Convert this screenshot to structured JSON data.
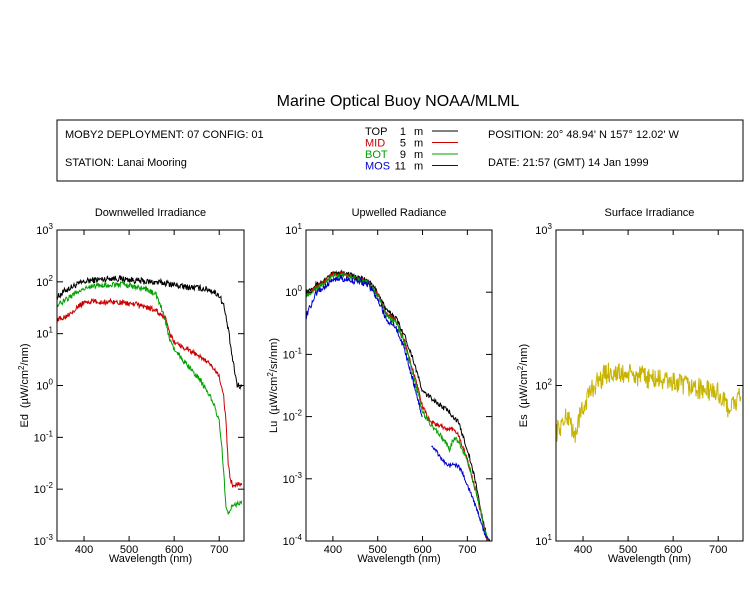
{
  "title": "Marine Optical Buoy NOAA/MLML",
  "info": {
    "deployment": "MOBY2 DEPLOYMENT: 07 CONFIG: 01",
    "station": "STATION: Lanai Mooring",
    "position": "POSITION: 20° 48.94' N   157° 12.02' W",
    "date": "DATE: 21:57 (GMT) 14 Jan 1999"
  },
  "legend": [
    {
      "name": "TOP",
      "depth": "1",
      "unit": "m",
      "color": "#000000"
    },
    {
      "name": "MID",
      "depth": "5",
      "unit": "m",
      "color": "#cc0000"
    },
    {
      "name": "BOT",
      "depth": "9",
      "unit": "m",
      "color": "#00a000"
    },
    {
      "name": "MOS",
      "depth": "11",
      "unit": "m",
      "color": "#0000cc"
    }
  ],
  "chart_data": [
    {
      "type": "line",
      "title": "Downwelled Irradiance",
      "xlabel": "Wavelength (nm)",
      "ylabel_main": "Ed",
      "ylabel_unit_a": "(µW/cm",
      "ylabel_unit_sup": "2",
      "ylabel_unit_b": "/nm)",
      "xlim": [
        340,
        755
      ],
      "ylim": [
        0.001,
        1000
      ],
      "yscale": "log",
      "xticks": [
        400,
        500,
        600,
        700
      ],
      "yticks": [
        {
          "value": 1000,
          "base": "10",
          "exp": "3"
        },
        {
          "value": 100,
          "base": "10",
          "exp": "2"
        },
        {
          "value": 10,
          "base": "10",
          "exp": "1"
        },
        {
          "value": 1,
          "base": "10",
          "exp": "0"
        },
        {
          "value": 0.1,
          "base": "10",
          "exp": "-1"
        },
        {
          "value": 0.01,
          "base": "10",
          "exp": "-2"
        },
        {
          "value": 0.001,
          "base": "10",
          "exp": "-3"
        }
      ],
      "series": [
        {
          "name": "TOP",
          "color": "#000000",
          "noise": 0.06,
          "x": [
            340,
            360,
            380,
            400,
            420,
            440,
            460,
            480,
            500,
            520,
            540,
            560,
            580,
            600,
            620,
            640,
            660,
            680,
            700,
            710,
            720,
            730,
            740,
            750
          ],
          "y": [
            50,
            70,
            85,
            100,
            108,
            112,
            118,
            115,
            110,
            105,
            100,
            98,
            95,
            88,
            80,
            78,
            75,
            70,
            55,
            35,
            12,
            3,
            1.0,
            0.95
          ]
        },
        {
          "name": "MID",
          "color": "#cc0000",
          "noise": 0.05,
          "x": [
            340,
            360,
            380,
            400,
            420,
            440,
            460,
            480,
            500,
            520,
            540,
            560,
            580,
            590,
            600,
            620,
            640,
            660,
            680,
            700,
            710,
            715,
            720,
            725,
            730,
            740,
            750
          ],
          "y": [
            18,
            22,
            30,
            40,
            42,
            40,
            42,
            40,
            38,
            36,
            32,
            28,
            20,
            10,
            7,
            5.5,
            4.5,
            3.5,
            2.5,
            1.5,
            0.6,
            0.2,
            0.03,
            0.015,
            0.012,
            0.013,
            0.012
          ]
        },
        {
          "name": "BOT",
          "color": "#00a000",
          "noise": 0.05,
          "x": [
            340,
            360,
            380,
            400,
            420,
            440,
            460,
            480,
            500,
            520,
            540,
            560,
            570,
            580,
            590,
            600,
            620,
            640,
            660,
            680,
            690,
            700,
            705,
            710,
            715,
            720,
            730,
            740,
            750
          ],
          "y": [
            35,
            45,
            60,
            75,
            82,
            85,
            88,
            90,
            85,
            78,
            72,
            55,
            35,
            18,
            8,
            5,
            3,
            2,
            1.2,
            0.6,
            0.4,
            0.2,
            0.08,
            0.02,
            0.005,
            0.003,
            0.005,
            0.005,
            0.006
          ]
        }
      ]
    },
    {
      "type": "line",
      "title": "Upwelled Radiance",
      "xlabel": "Wavelength (nm)",
      "ylabel_main": "Lu",
      "ylabel_unit_a": "(µW/cm",
      "ylabel_unit_sup": "2",
      "ylabel_unit_b": "/sr/nm)",
      "xlim": [
        340,
        755
      ],
      "ylim": [
        0.0001,
        10
      ],
      "yscale": "log",
      "xticks": [
        400,
        500,
        600,
        700
      ],
      "yticks": [
        {
          "value": 10,
          "base": "10",
          "exp": "1"
        },
        {
          "value": 1,
          "base": "10",
          "exp": "0"
        },
        {
          "value": 0.1,
          "base": "10",
          "exp": "-1"
        },
        {
          "value": 0.01,
          "base": "10",
          "exp": "-2"
        },
        {
          "value": 0.001,
          "base": "10",
          "exp": "-3"
        },
        {
          "value": 0.0001,
          "base": "10",
          "exp": "-4"
        }
      ],
      "series": [
        {
          "name": "TOP",
          "color": "#000000",
          "noise": 0.04,
          "x": [
            340,
            360,
            380,
            400,
            420,
            440,
            460,
            480,
            500,
            520,
            540,
            560,
            580,
            600,
            620,
            640,
            660,
            680,
            700,
            720,
            730,
            740,
            745,
            750
          ],
          "y": [
            1.0,
            1.3,
            1.5,
            2.0,
            2.1,
            1.9,
            1.7,
            1.5,
            1.0,
            0.5,
            0.4,
            0.2,
            0.08,
            0.025,
            0.02,
            0.015,
            0.012,
            0.008,
            0.003,
            0.0008,
            0.0003,
            0.00015,
            0.0001,
            0.0001
          ]
        },
        {
          "name": "MID",
          "color": "#cc0000",
          "noise": 0.04,
          "x": [
            340,
            360,
            380,
            400,
            420,
            440,
            460,
            480,
            500,
            520,
            540,
            560,
            580,
            600,
            610,
            620,
            640,
            660,
            670,
            680,
            700,
            720,
            735,
            745,
            750
          ],
          "y": [
            0.9,
            1.2,
            1.5,
            1.9,
            2.0,
            1.8,
            1.6,
            1.4,
            0.9,
            0.45,
            0.35,
            0.16,
            0.05,
            0.015,
            0.01,
            0.008,
            0.007,
            0.006,
            0.0065,
            0.005,
            0.002,
            0.0006,
            0.0002,
            0.0001,
            0.0001
          ]
        },
        {
          "name": "BOT",
          "color": "#00a000",
          "noise": 0.04,
          "x": [
            340,
            360,
            380,
            400,
            420,
            440,
            460,
            480,
            500,
            520,
            540,
            560,
            580,
            600,
            620,
            640,
            660,
            670,
            680,
            700,
            720,
            735,
            745,
            750
          ],
          "y": [
            0.9,
            1.1,
            1.4,
            1.8,
            1.9,
            1.7,
            1.6,
            1.4,
            0.9,
            0.42,
            0.33,
            0.15,
            0.045,
            0.012,
            0.007,
            0.005,
            0.003,
            0.0045,
            0.004,
            0.002,
            0.0006,
            0.0002,
            0.0001,
            0.0001
          ]
        },
        {
          "name": "MOS",
          "color": "#0000cc",
          "noise": 0.05,
          "x": [
            340,
            350,
            360,
            380,
            400,
            420,
            440,
            460,
            480,
            500,
            520,
            540,
            560,
            580,
            600
          ],
          "y": [
            0.4,
            0.6,
            0.9,
            1.2,
            1.6,
            1.7,
            1.5,
            1.5,
            1.3,
            0.8,
            0.35,
            0.28,
            0.12,
            0.035,
            0.01
          ]
        },
        {
          "name": "MOS",
          "color": "#0000cc",
          "noise": 0.03,
          "x": [
            620,
            630,
            640,
            650,
            660,
            670,
            680,
            690,
            700,
            720,
            740,
            750
          ],
          "y": [
            0.0035,
            0.0028,
            0.0022,
            0.0018,
            0.0016,
            0.0017,
            0.0016,
            0.0012,
            0.0008,
            0.00035,
            0.00012,
            0.0001
          ]
        }
      ]
    },
    {
      "type": "line",
      "title": "Surface Irradiance",
      "xlabel": "Wavelength (nm)",
      "ylabel_main": "Es",
      "ylabel_unit_a": "(µW/cm",
      "ylabel_unit_sup": "2",
      "ylabel_unit_b": "/nm)",
      "xlim": [
        340,
        755
      ],
      "ylim": [
        10,
        1000
      ],
      "yscale": "log",
      "xticks": [
        400,
        500,
        600,
        700
      ],
      "yticks": [
        {
          "value": 1000,
          "base": "10",
          "exp": "3"
        },
        {
          "value": 100,
          "base": "10",
          "exp": "2"
        },
        {
          "value": 10,
          "base": "10",
          "exp": "1"
        }
      ],
      "series": [
        {
          "name": "Es",
          "color": "#c8b400",
          "noise": 0.07,
          "x": [
            340,
            350,
            360,
            370,
            380,
            390,
            400,
            410,
            420,
            430,
            440,
            450,
            460,
            480,
            500,
            520,
            540,
            560,
            580,
            600,
            620,
            640,
            660,
            680,
            700,
            720,
            730,
            740,
            750
          ],
          "y": [
            50,
            55,
            60,
            65,
            45,
            60,
            70,
            85,
            95,
            105,
            110,
            120,
            122,
            118,
            118,
            115,
            112,
            110,
            108,
            105,
            100,
            98,
            95,
            92,
            90,
            72,
            75,
            78,
            85
          ]
        }
      ]
    }
  ]
}
